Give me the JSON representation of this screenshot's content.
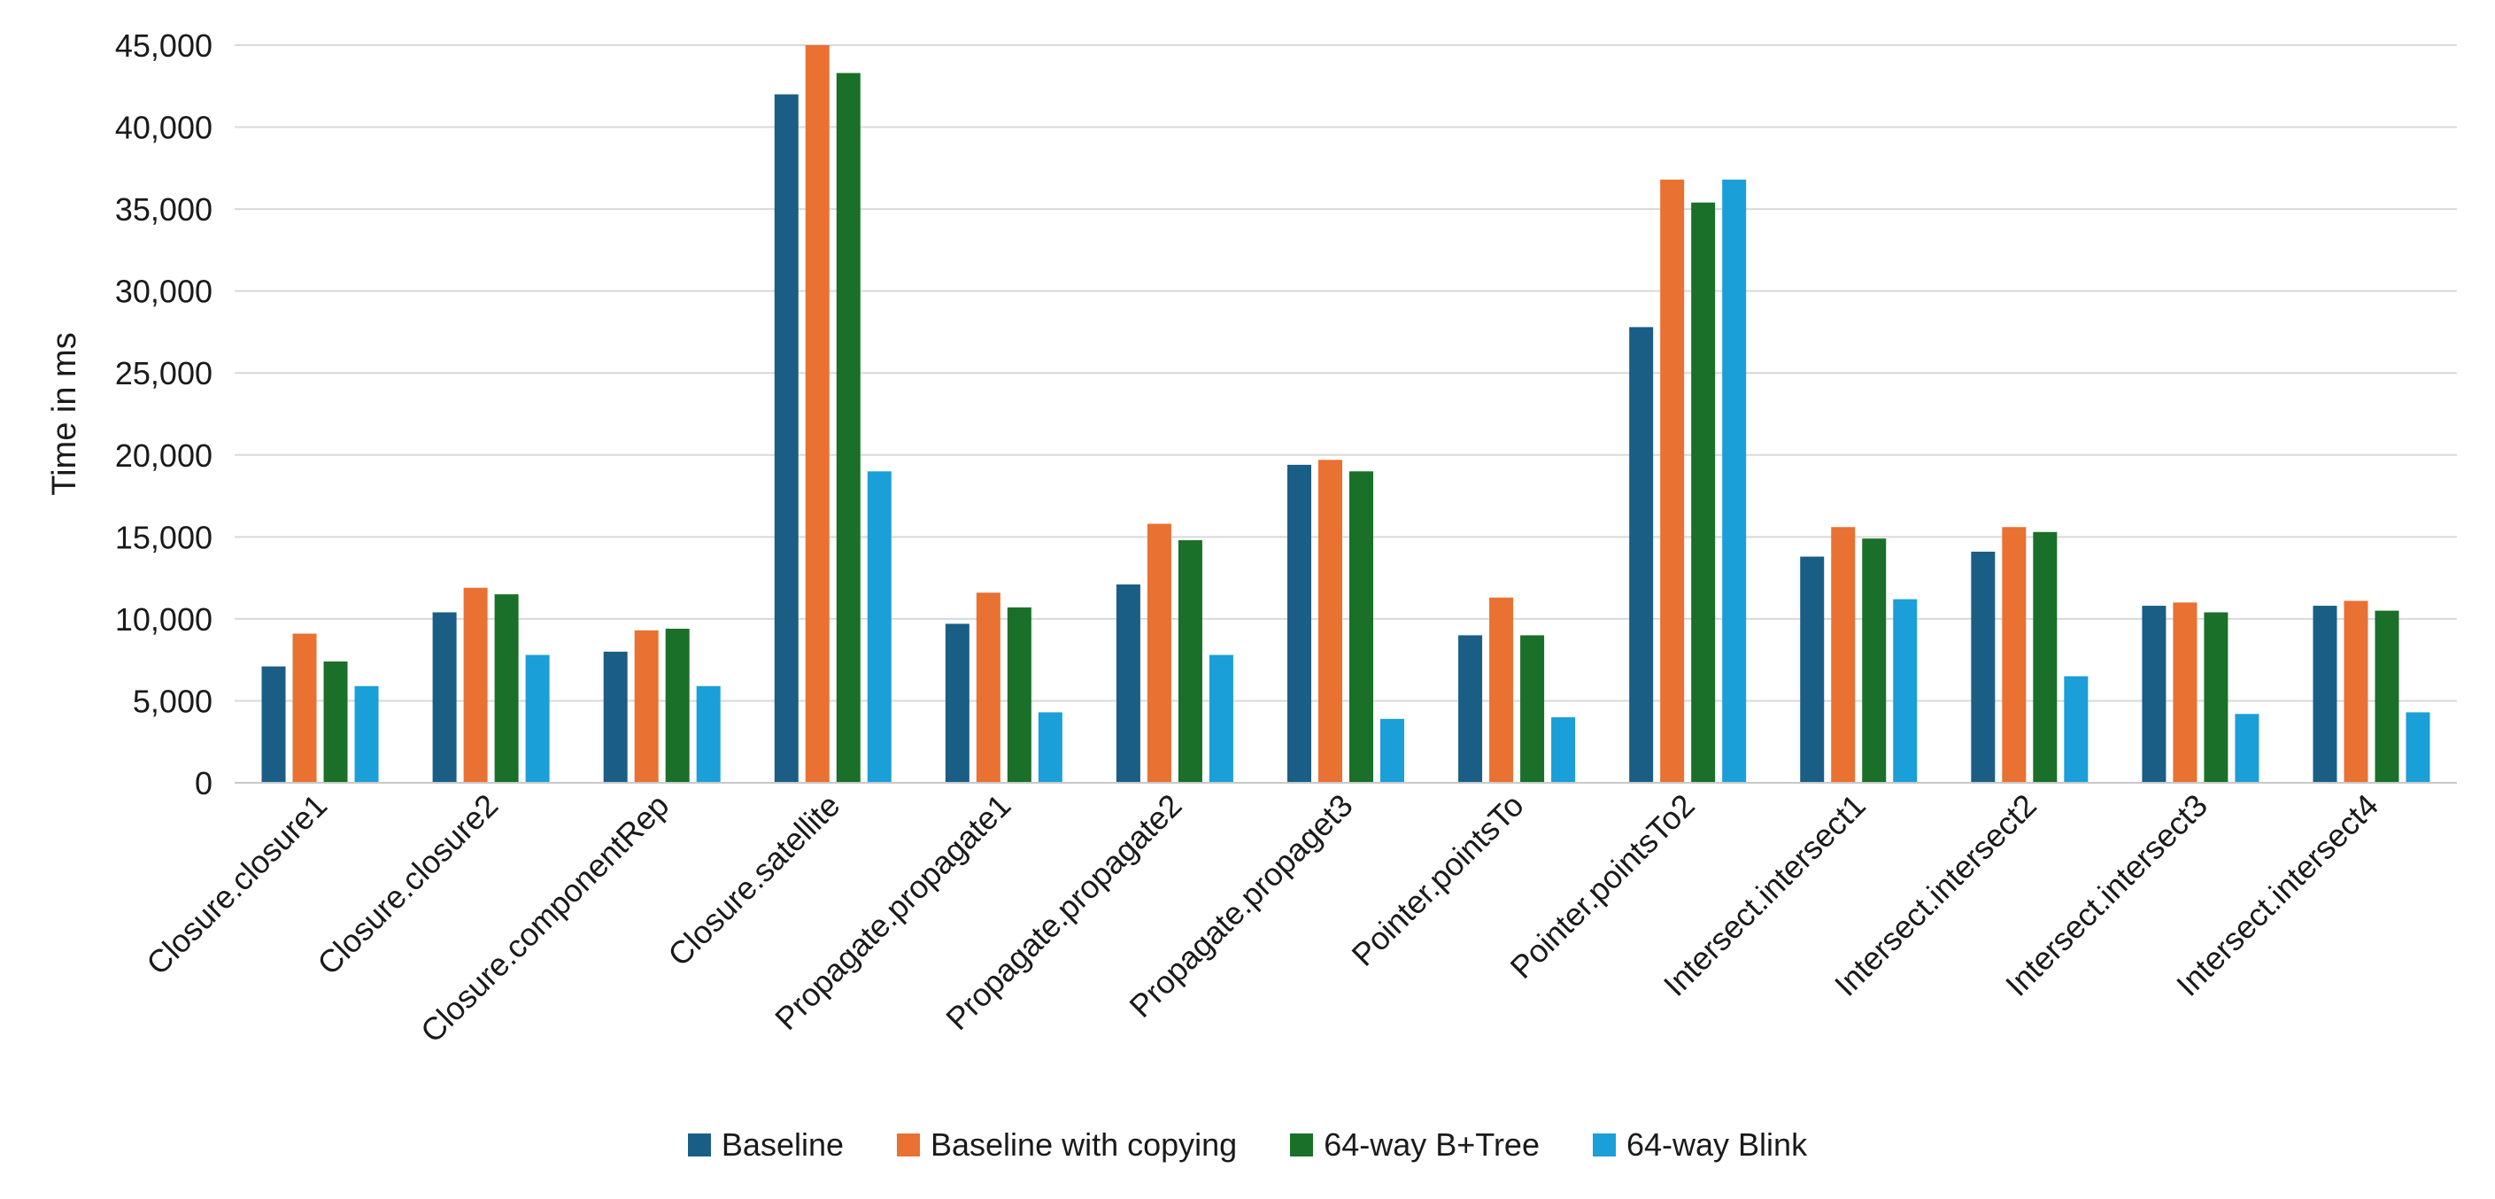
{
  "chart_data": {
    "type": "bar",
    "title": "",
    "xlabel": "",
    "ylabel": "Time in ms",
    "ylim": [
      0,
      45000
    ],
    "yticks": [
      0,
      5000,
      10000,
      15000,
      20000,
      25000,
      30000,
      35000,
      40000,
      45000
    ],
    "ytick_labels": [
      "0",
      "5,000",
      "10,000",
      "15,000",
      "20,000",
      "25,000",
      "30,000",
      "35,000",
      "40,000",
      "45,000"
    ],
    "grid": "horizontal",
    "legend_position": "bottom",
    "categories": [
      "Closure.closure1",
      "Closure.closure2",
      "Closure.componentRep",
      "Closure.satellite",
      "Propagate.propagate1",
      "Propagate.propagate2",
      "Propagate.propaget3",
      "Pointer.pointsTo",
      "Pointer.pointsTo2",
      "Intersect.intersect1",
      "Intersect.intersect2",
      "Intersect.intersect3",
      "Intersect.intersect4"
    ],
    "series": [
      {
        "name": "Baseline",
        "color": "#1b5e85",
        "values": [
          7100,
          10400,
          8000,
          42000,
          9700,
          12100,
          19400,
          9000,
          27800,
          13800,
          14100,
          10800,
          10800
        ]
      },
      {
        "name": "Baseline with copying",
        "color": "#e97131",
        "values": [
          9100,
          11900,
          9300,
          45000,
          11600,
          15800,
          19700,
          11300,
          36800,
          15600,
          15600,
          11000,
          11100
        ]
      },
      {
        "name": "64-way B+Tree",
        "color": "#1a7028",
        "values": [
          7400,
          11500,
          9400,
          43300,
          10700,
          14800,
          19000,
          9000,
          35400,
          14900,
          15300,
          10400,
          10500
        ]
      },
      {
        "name": "64-way Blink",
        "color": "#1b9fd8",
        "values": [
          5900,
          7800,
          5900,
          19000,
          4300,
          7800,
          3900,
          4000,
          36800,
          11200,
          6500,
          4200,
          4300
        ]
      }
    ]
  }
}
